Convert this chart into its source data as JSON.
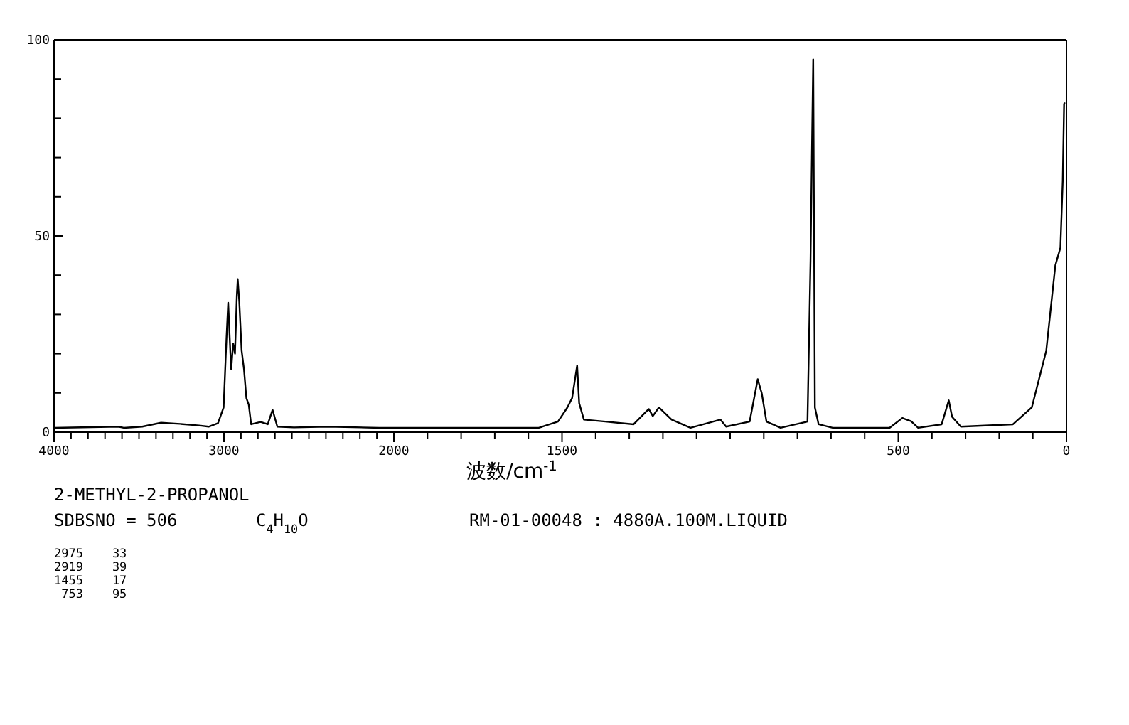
{
  "chart_data": [
    {
      "type": "line",
      "annotations": [
        "2-METHYL-2-PROPANOL",
        "SDBSNO = 506",
        "C$_{4}$H$_{10}$O",
        "RM-01-00048 : 4880A.100M.LIQUID",
        "2975    33",
        "2919    39",
        "1455    17",
        " 753    95"
      ],
      "xlim": [
        4000,
        2000
      ],
      "ylim": [
        0,
        100
      ],
      "xticks": [
        4000,
        {
          "value": 3900,
          "label": null
        },
        {
          "value": 3800,
          "label": null
        },
        {
          "value": 3700,
          "label": null
        },
        {
          "value": 3600,
          "label": null
        },
        {
          "value": 3500,
          "label": null
        },
        {
          "value": 3400,
          "label": null
        },
        {
          "value": 3300,
          "label": null
        },
        {
          "value": 3200,
          "label": null
        },
        {
          "value": 3100,
          "label": null
        },
        3000,
        {
          "value": 2900,
          "label": null
        },
        {
          "value": 2800,
          "label": null
        },
        {
          "value": 2700,
          "label": null
        },
        {
          "value": 2600,
          "label": null
        },
        {
          "value": 2500,
          "label": null
        },
        {
          "value": 2400,
          "label": null
        },
        {
          "value": 2300,
          "label": null
        },
        {
          "value": 2200,
          "label": null
        },
        {
          "value": 2100,
          "label": null
        },
        2000
      ],
      "yticks": [
        0,
        {
          "value": 10,
          "label": null
        },
        {
          "value": 20,
          "label": null
        },
        {
          "value": 30,
          "label": null
        },
        {
          "value": 40,
          "label": null
        },
        50,
        {
          "value": 60,
          "label": null
        },
        {
          "value": 70,
          "label": null
        },
        {
          "value": 80,
          "label": null
        },
        {
          "value": 90,
          "label": null
        },
        100
      ],
      "marker": "none",
      "line_style": "solid",
      "series": [
        {
          "color": "#000000",
          "x": [
            4000,
            3621,
            3590,
            3481,
            3370,
            3258,
            3146,
            3090,
            3035,
            3002,
            2985,
            2975,
            2962,
            2957,
            2946,
            2935,
            2924,
            2919,
            2910,
            2896,
            2882,
            2868,
            2854,
            2840,
            2784,
            2742,
            2714,
            2686,
            2588,
            2393,
            2086,
            2000
          ],
          "values": [
            1.1,
            1.4,
            1.1,
            1.4,
            2.4,
            2.1,
            1.7,
            1.4,
            2.3,
            6.3,
            24,
            33,
            20,
            16,
            22.6,
            20,
            35,
            39,
            33.5,
            20.8,
            16,
            8.7,
            7,
            2,
            2.6,
            2,
            5.7,
            1.4,
            1.2,
            1.4,
            1.1,
            1.1
          ]
        }
      ]
    },
    {
      "type": "line",
      "xlabel": "波数/cm$^{-1}$",
      "xlim": [
        2000,
        0
      ],
      "ylim": [
        0,
        100
      ],
      "tick_labels": "x",
      "xticks": [
        {
          "value": 2000,
          "label": null
        },
        {
          "value": 1900,
          "label": null
        },
        {
          "value": 1800,
          "label": null
        },
        {
          "value": 1700,
          "label": null
        },
        {
          "value": 1600,
          "label": null
        },
        1500,
        {
          "value": 1400,
          "label": null
        },
        {
          "value": 1300,
          "label": null
        },
        {
          "value": 1200,
          "label": null
        },
        {
          "value": 1100,
          "label": null
        },
        {
          "value": 1000,
          "label": null
        },
        {
          "value": 900,
          "label": null
        },
        {
          "value": 800,
          "label": null
        },
        {
          "value": 700,
          "label": null
        },
        {
          "value": 600,
          "label": null
        },
        500,
        {
          "value": 400,
          "label": null
        },
        {
          "value": 300,
          "label": null
        },
        {
          "value": 200,
          "label": null
        },
        {
          "value": 100,
          "label": null
        },
        0
      ],
      "marker": "none",
      "line_style": "solid",
      "series": [
        {
          "color": "#000000",
          "x": [
            2000,
            1569,
            1512,
            1484,
            1470,
            1455,
            1449,
            1435,
            1371,
            1287,
            1242,
            1230,
            1212,
            1174,
            1118,
            1029,
            1012,
            942,
            918,
            906,
            892,
            850,
            770,
            761,
            757,
            753,
            748,
            737,
            695,
            526,
            488,
            462,
            441,
            371,
            350,
            340,
            314,
            159,
            103,
            60,
            33,
            18,
            11,
            7,
            5
          ],
          "values": [
            1.1,
            1.1,
            2.7,
            6.3,
            8.7,
            17,
            7.4,
            3.2,
            2.7,
            2,
            5.9,
            4.1,
            6.3,
            3.2,
            1.1,
            3.2,
            1.4,
            2.7,
            13.5,
            9.9,
            2.7,
            1.1,
            2.7,
            43.7,
            70,
            95,
            6.3,
            2,
            1.1,
            1.1,
            3.6,
            2.8,
            1.1,
            2,
            8.1,
            3.9,
            1.4,
            2,
            6.3,
            20.8,
            42.5,
            47,
            64,
            83.6,
            84
          ]
        }
      ]
    }
  ]
}
